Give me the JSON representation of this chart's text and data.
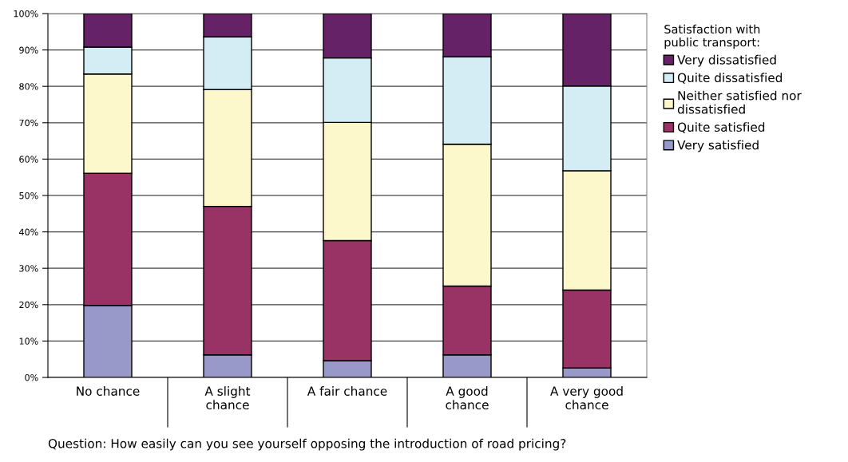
{
  "chart_data": {
    "type": "bar",
    "stacked": true,
    "categories": [
      "No chance",
      "A slight\nchance",
      "A fair chance",
      "A good\nchance",
      "A very good\nchance"
    ],
    "series": [
      {
        "name": "Very satisfied",
        "color": "#9999c9",
        "values": [
          19.8,
          6.2,
          4.6,
          6.2,
          2.6
        ]
      },
      {
        "name": "Quite satisfied",
        "color": "#993366",
        "values": [
          36.3,
          40.8,
          33.0,
          18.9,
          21.4
        ]
      },
      {
        "name": "Neither satisfied nor\ndissatisfied",
        "color": "#fcf8cc",
        "values": [
          27.3,
          32.1,
          32.5,
          39.0,
          32.8
        ]
      },
      {
        "name": "Quite dissatisfied",
        "color": "#d4ecf3",
        "values": [
          7.4,
          14.5,
          17.7,
          24.0,
          23.3
        ]
      },
      {
        "name": "Very dissatisfied",
        "color": "#662266",
        "values": [
          9.2,
          6.4,
          12.2,
          11.9,
          19.9
        ]
      }
    ],
    "ylim": [
      0,
      100
    ],
    "yticks": [
      {
        "value": 0,
        "label": "0%"
      },
      {
        "value": 10,
        "label": "10%"
      },
      {
        "value": 20,
        "label": "20%"
      },
      {
        "value": 30,
        "label": "30%"
      },
      {
        "value": 40,
        "label": "40%"
      },
      {
        "value": 50,
        "label": "50%"
      },
      {
        "value": 60,
        "label": "60%"
      },
      {
        "value": 70,
        "label": "70%"
      },
      {
        "value": 80,
        "label": "80%"
      },
      {
        "value": 90,
        "label": "90%"
      },
      {
        "value": 100,
        "label": "100%"
      }
    ],
    "grid": "y",
    "legend": "right",
    "legend_title": "Satisfaction with\npublic transport:",
    "annotations": [
      "Question: How easily can you see yourself opposing the introduction of road pricing?"
    ]
  }
}
